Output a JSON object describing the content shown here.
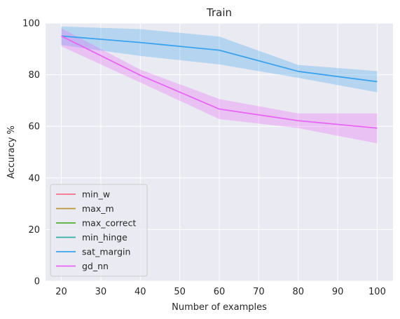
{
  "chart_data": {
    "type": "line",
    "title": "Train",
    "xlabel": "Number of examples",
    "ylabel": "Accuracy %",
    "x": [
      20,
      40,
      60,
      80,
      100
    ],
    "xlim": [
      16,
      104
    ],
    "ylim": [
      0,
      100
    ],
    "xticks": [
      20,
      30,
      40,
      50,
      60,
      70,
      80,
      90,
      100
    ],
    "yticks": [
      0,
      20,
      40,
      60,
      80,
      100
    ],
    "grid": true,
    "legend_position": "lower-left",
    "series": [
      {
        "name": "min_w",
        "color": "#f77189",
        "values": null
      },
      {
        "name": "max_m",
        "color": "#bb9832",
        "values": null
      },
      {
        "name": "max_correct",
        "color": "#50b131",
        "values": null
      },
      {
        "name": "min_hinge",
        "color": "#36ada4",
        "values": null
      },
      {
        "name": "sat_margin",
        "color": "#3ba3ec",
        "values": [
          95.0,
          92.5,
          89.5,
          81.3,
          77.3
        ],
        "band_lower": [
          91.5,
          87.3,
          84.0,
          78.8,
          73.2
        ],
        "band_upper": [
          98.7,
          97.7,
          94.8,
          83.8,
          81.4
        ]
      },
      {
        "name": "gd_nn",
        "color": "#e866f4",
        "values": [
          95.0,
          79.8,
          66.7,
          62.2,
          59.3
        ],
        "band_lower": [
          91.0,
          77.0,
          62.8,
          59.3,
          53.4
        ],
        "band_upper": [
          98.0,
          82.0,
          70.6,
          65.0,
          65.0
        ]
      }
    ]
  }
}
